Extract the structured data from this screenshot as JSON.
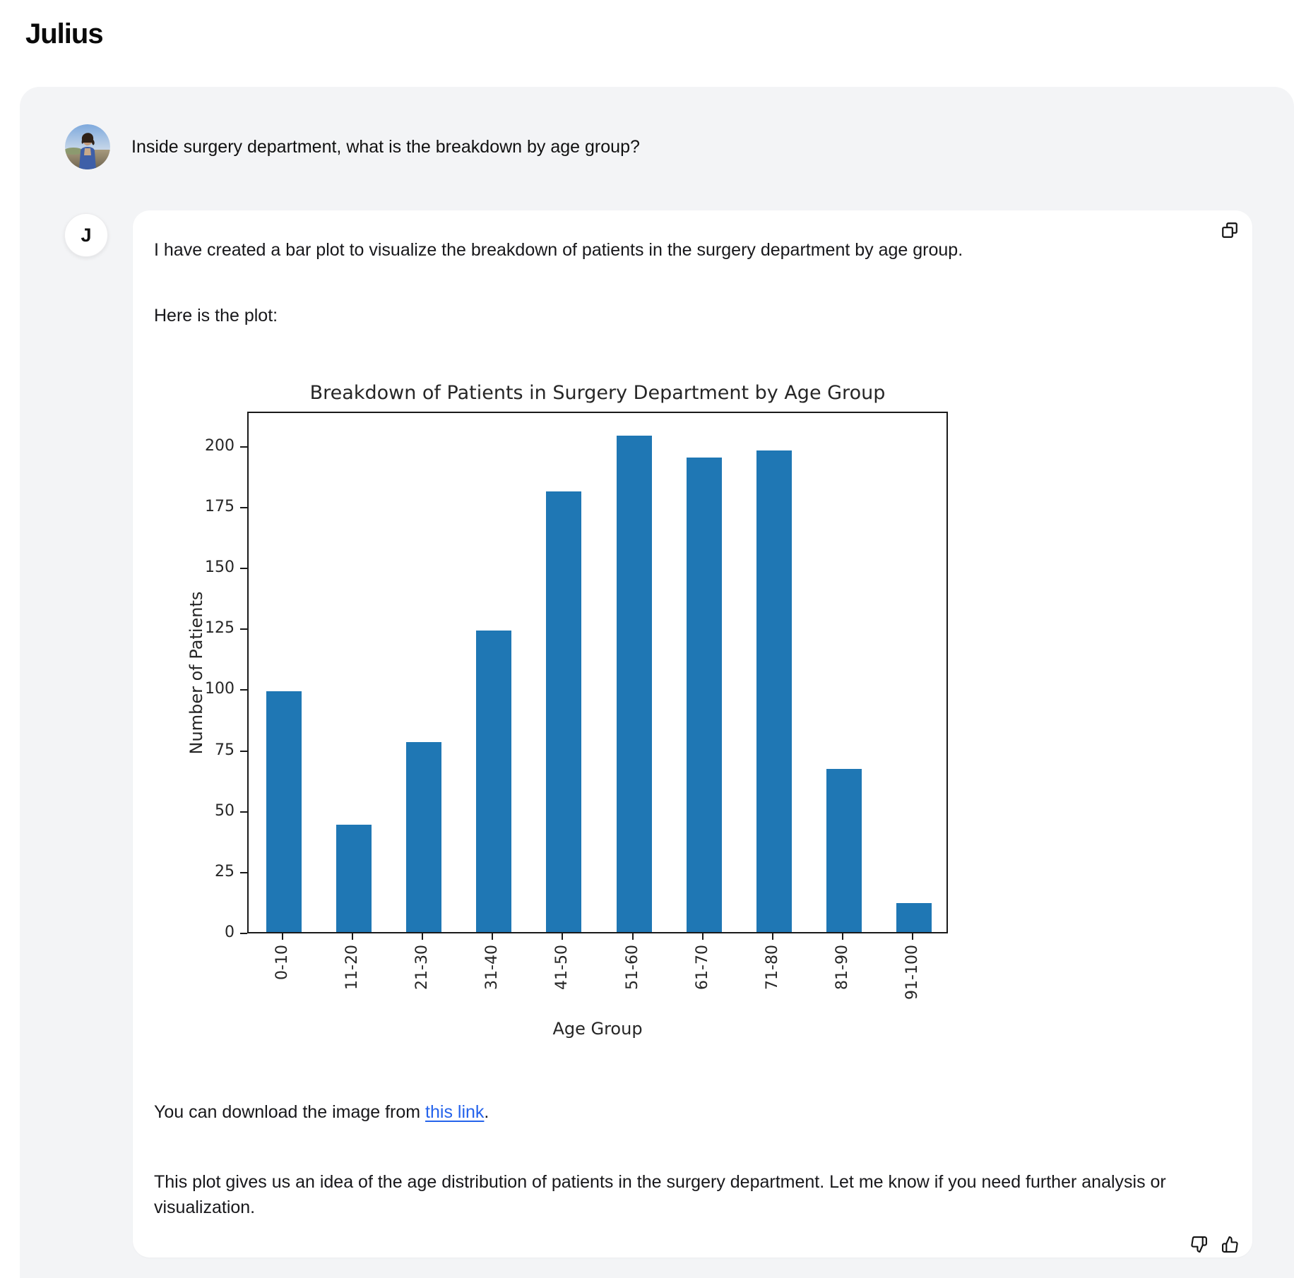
{
  "app": {
    "title": "Julius"
  },
  "user_message": {
    "text": "Inside surgery department, what is the breakdown by age group?"
  },
  "assistant_message": {
    "avatar_initial": "J",
    "paragraph_1": "I have created a bar plot to visualize the breakdown of patients in the surgery department by age group.",
    "paragraph_2": "Here is the plot:",
    "download_prefix": "You can download the image from ",
    "download_link_text": "this link",
    "download_suffix": ".",
    "paragraph_3": "This plot gives us an idea of the age distribution of patients in the surgery department. Let me know if you need further analysis or visualization."
  },
  "chart_data": {
    "type": "bar",
    "title": "Breakdown of Patients in Surgery Department by Age Group",
    "categories": [
      "0-10",
      "11-20",
      "21-30",
      "31-40",
      "41-50",
      "51-60",
      "61-70",
      "71-80",
      "81-90",
      "91-100"
    ],
    "values": [
      99,
      44,
      78,
      124,
      181,
      204,
      195,
      198,
      67,
      12
    ],
    "xlabel": "Age Group",
    "ylabel": "Number of Patients",
    "yticks": [
      0,
      25,
      50,
      75,
      100,
      125,
      150,
      175,
      200
    ],
    "ylim": [
      0,
      214.5
    ],
    "x_tick_rotation": 90,
    "grid": false,
    "legend": false,
    "bar_color": "#1f77b4"
  },
  "colors": {
    "bar": "#1f77b4",
    "link": "#2563eb",
    "container_bg": "#f3f4f6",
    "card_bg": "#ffffff",
    "text": "#111111"
  }
}
